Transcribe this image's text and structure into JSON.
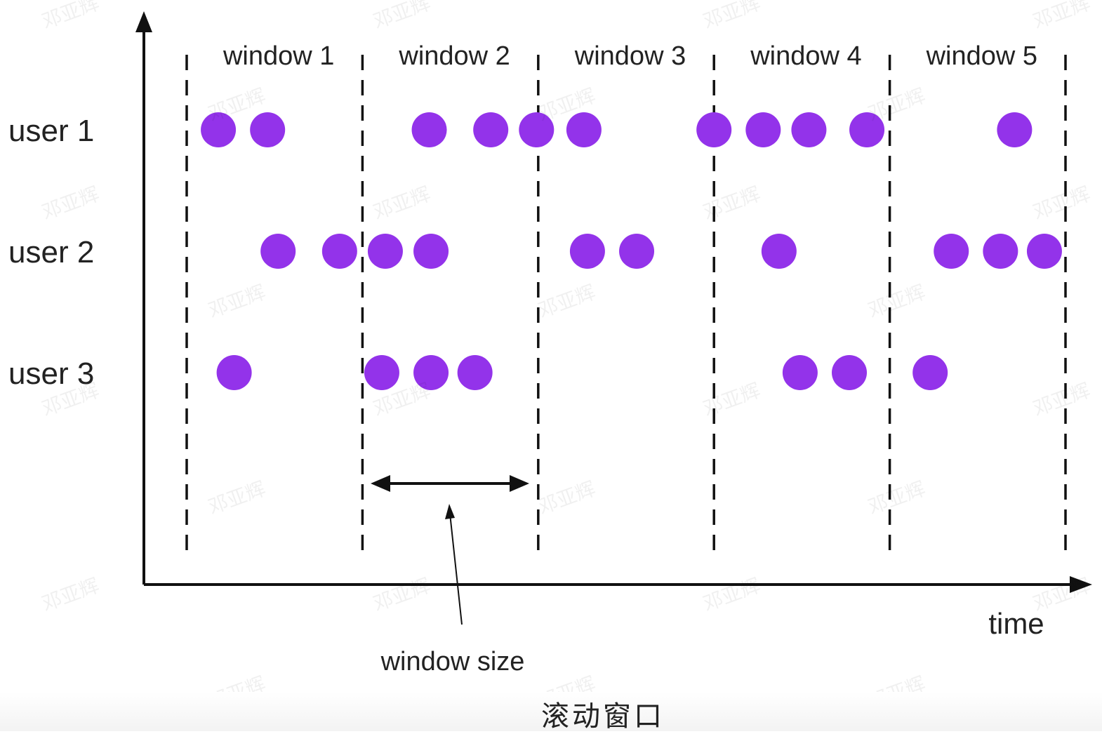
{
  "diagram": {
    "type": "tumbling-window",
    "windows": [
      "window 1",
      "window 2",
      "window 3",
      "window 4",
      "window 5"
    ],
    "users": [
      {
        "label": "user 1",
        "events": [
          0.18,
          0.46,
          1.38,
          1.73,
          1.99,
          2.26,
          3.0,
          3.28,
          3.54,
          3.87,
          4.71
        ]
      },
      {
        "label": "user 2",
        "events": [
          0.52,
          0.87,
          1.13,
          1.39,
          2.28,
          2.56,
          3.37,
          4.35,
          4.63,
          4.88
        ]
      },
      {
        "label": "user 3",
        "events": [
          0.27,
          1.11,
          1.39,
          1.64,
          3.49,
          3.77,
          4.23
        ]
      }
    ],
    "x_axis_label": "time",
    "window_size_label": "window size",
    "caption": "滚动窗口",
    "watermark_text": "邓亚辉",
    "colors": {
      "event": "#9333ea",
      "line": "#111111",
      "text": "#222222"
    }
  }
}
